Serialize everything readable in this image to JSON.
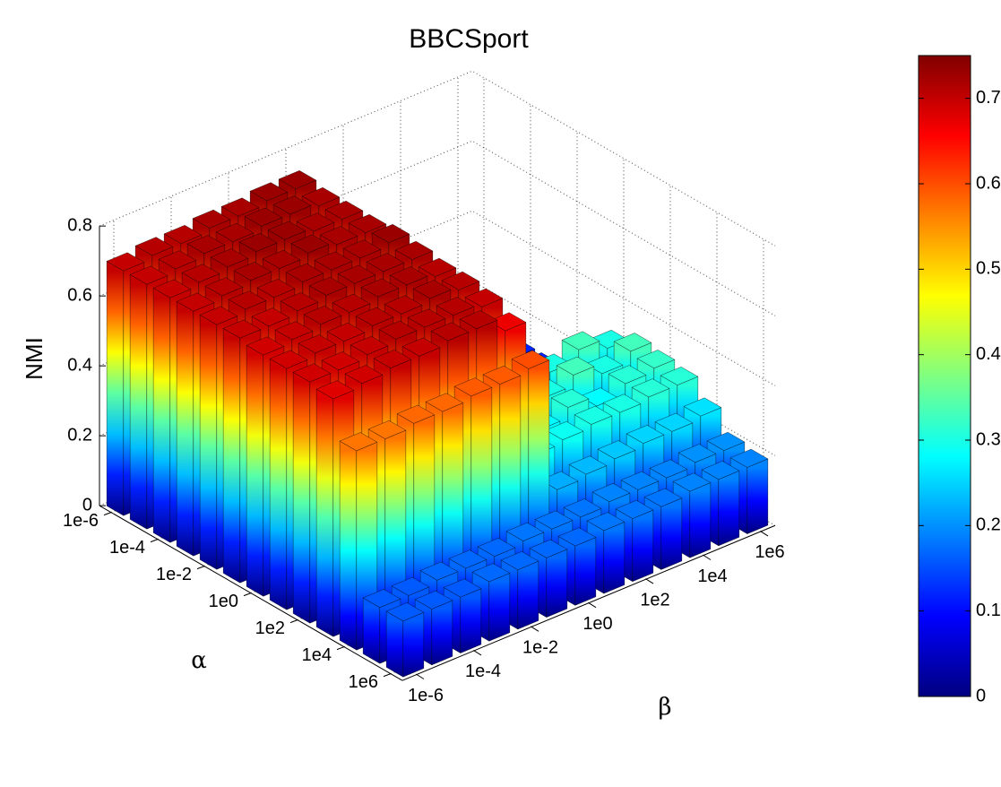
{
  "chart_data": {
    "type": "bar3d",
    "title": "BBCSport",
    "zlabel": "NMI",
    "ylabel": "α",
    "xlabel": "β",
    "alpha": [
      "1e-6",
      null,
      "1e-4",
      null,
      "1e-2",
      null,
      "1e0",
      null,
      "1e2",
      null,
      "1e4",
      null,
      "1e6"
    ],
    "beta": [
      "1e-6",
      null,
      "1e-4",
      null,
      "1e-2",
      null,
      "1e0",
      null,
      "1e2",
      null,
      "1e4",
      null,
      "1e6"
    ],
    "values": [
      [
        0.7,
        0.71,
        0.71,
        0.72,
        0.72,
        0.73,
        0.73,
        0.1,
        0.1,
        0.1,
        0.11,
        0.11,
        0.11
      ],
      [
        0.7,
        0.71,
        0.72,
        0.72,
        0.73,
        0.73,
        0.72,
        0.1,
        0.1,
        0.11,
        0.11,
        0.11,
        0.11
      ],
      [
        0.7,
        0.71,
        0.72,
        0.73,
        0.73,
        0.72,
        0.72,
        0.1,
        0.11,
        0.11,
        0.11,
        0.12,
        0.12
      ],
      [
        0.7,
        0.71,
        0.72,
        0.72,
        0.73,
        0.72,
        0.72,
        0.11,
        0.11,
        0.11,
        0.12,
        0.12,
        0.12
      ],
      [
        0.7,
        0.71,
        0.71,
        0.72,
        0.72,
        0.72,
        0.73,
        0.11,
        0.12,
        0.12,
        0.12,
        0.12,
        0.13
      ],
      [
        0.7,
        0.7,
        0.71,
        0.72,
        0.72,
        0.72,
        0.72,
        0.12,
        0.14,
        0.12,
        0.14,
        0.12,
        0.14
      ],
      [
        0.69,
        0.7,
        0.71,
        0.71,
        0.72,
        0.72,
        0.71,
        0.32,
        0.3,
        0.33,
        0.3,
        0.33,
        0.3
      ],
      [
        0.69,
        0.7,
        0.7,
        0.71,
        0.71,
        0.72,
        0.71,
        0.3,
        0.33,
        0.3,
        0.33,
        0.3,
        0.33
      ],
      [
        0.69,
        0.69,
        0.7,
        0.71,
        0.71,
        0.71,
        0.7,
        0.32,
        0.28,
        0.31,
        0.28,
        0.31,
        0.32
      ],
      [
        0.68,
        0.69,
        0.7,
        0.7,
        0.71,
        0.71,
        0.67,
        0.28,
        0.29,
        0.3,
        0.3,
        0.31,
        0.31
      ],
      [
        0.57,
        0.57,
        0.58,
        0.58,
        0.59,
        0.59,
        0.6,
        0.22,
        0.23,
        0.24,
        0.25,
        0.25,
        0.26
      ],
      [
        0.16,
        0.16,
        0.17,
        0.17,
        0.17,
        0.18,
        0.18,
        0.18,
        0.19,
        0.19,
        0.19,
        0.2,
        0.2
      ],
      [
        0.16,
        0.16,
        0.16,
        0.17,
        0.17,
        0.17,
        0.17,
        0.18,
        0.18,
        0.18,
        0.19,
        0.19,
        0.19
      ]
    ],
    "zlim": [
      0,
      0.8
    ],
    "zticks": [
      0,
      0.2,
      0.4,
      0.6,
      0.8
    ],
    "grid": true,
    "colormap": "jet",
    "colorbar": {
      "clim": [
        0,
        0.75
      ],
      "ticks": [
        0,
        0.1,
        0.2,
        0.3,
        0.4,
        0.5,
        0.6,
        0.7
      ]
    }
  }
}
